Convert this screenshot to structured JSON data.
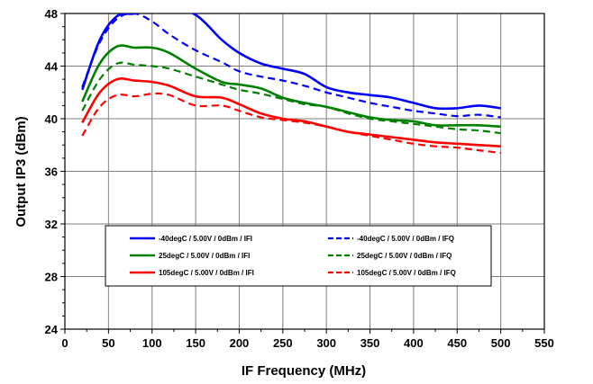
{
  "chart_data": {
    "type": "line",
    "xlabel": "IF Frequency (MHz)",
    "ylabel": "Output IP3 (dBm)",
    "xlim": [
      0,
      550
    ],
    "ylim": [
      24,
      48
    ],
    "xticks": [
      "0",
      "50",
      "100",
      "150",
      "200",
      "250",
      "300",
      "350",
      "400",
      "450",
      "500",
      "550"
    ],
    "yticks": [
      "24",
      "28",
      "32",
      "36",
      "40",
      "44",
      "48"
    ],
    "grid": true,
    "legend_placement": "inside-lower-center",
    "series": [
      {
        "name": "-40degC /  5.00V /  0dBm /  IFI",
        "color": "#0000ff",
        "style": "solid",
        "x": [
          20,
          40,
          60,
          80,
          100,
          120,
          150,
          180,
          200,
          225,
          250,
          275,
          300,
          325,
          350,
          375,
          400,
          425,
          450,
          475,
          500
        ],
        "y": [
          42.2,
          46.0,
          47.8,
          48.0,
          48.4,
          48.4,
          47.9,
          46.0,
          45.0,
          44.2,
          43.8,
          43.4,
          42.4,
          42.0,
          41.8,
          41.6,
          41.2,
          40.8,
          40.8,
          41.0,
          40.8
        ]
      },
      {
        "name": "-40degC /  5.00V /  0dBm /  IFQ",
        "color": "#0000ff",
        "style": "dashed",
        "x": [
          20,
          40,
          60,
          80,
          100,
          120,
          150,
          180,
          200,
          225,
          250,
          275,
          300,
          325,
          350,
          375,
          400,
          425,
          450,
          475,
          500
        ],
        "y": [
          42.4,
          45.8,
          47.6,
          48.0,
          47.4,
          46.4,
          45.2,
          44.3,
          43.6,
          43.2,
          42.9,
          42.5,
          42.0,
          41.6,
          41.2,
          40.9,
          40.6,
          40.4,
          40.2,
          40.3,
          40.1
        ]
      },
      {
        "name": "25degC /  5.00V /  0dBm /  IFI",
        "color": "#008000",
        "style": "solid",
        "x": [
          20,
          40,
          60,
          80,
          100,
          120,
          150,
          180,
          200,
          225,
          250,
          275,
          300,
          325,
          350,
          375,
          400,
          425,
          450,
          475,
          500
        ],
        "y": [
          41.3,
          44.2,
          45.5,
          45.4,
          45.4,
          45.0,
          43.8,
          42.8,
          42.6,
          42.3,
          41.6,
          41.2,
          40.9,
          40.5,
          40.1,
          39.9,
          39.8,
          39.5,
          39.5,
          39.5,
          39.4
        ]
      },
      {
        "name": "25degC /  5.00V /  0dBm /  IFQ",
        "color": "#008000",
        "style": "dashed",
        "x": [
          20,
          40,
          60,
          80,
          100,
          120,
          150,
          180,
          200,
          225,
          250,
          275,
          300,
          325,
          350,
          375,
          400,
          425,
          450,
          475,
          500
        ],
        "y": [
          40.6,
          43.0,
          44.2,
          44.1,
          44.0,
          43.8,
          43.2,
          42.6,
          42.2,
          41.9,
          41.5,
          41.1,
          40.9,
          40.4,
          40.0,
          39.8,
          39.6,
          39.4,
          39.2,
          39.1,
          38.9
        ]
      },
      {
        "name": "105degC /  5.00V /  0dBm /  IFI",
        "color": "#ff0000",
        "style": "solid",
        "x": [
          20,
          40,
          60,
          80,
          100,
          120,
          150,
          180,
          200,
          225,
          250,
          275,
          300,
          325,
          350,
          375,
          400,
          425,
          450,
          475,
          500
        ],
        "y": [
          39.7,
          42.0,
          43.0,
          42.9,
          42.8,
          42.5,
          41.7,
          41.6,
          41.1,
          40.4,
          40.0,
          39.8,
          39.4,
          39.0,
          38.8,
          38.6,
          38.4,
          38.2,
          38.1,
          38.0,
          37.9
        ]
      },
      {
        "name": "105degC /  5.00V /  0dBm /  IFQ",
        "color": "#ff0000",
        "style": "dashed",
        "x": [
          20,
          40,
          60,
          80,
          100,
          120,
          150,
          180,
          200,
          225,
          250,
          275,
          300,
          325,
          350,
          375,
          400,
          425,
          450,
          475,
          500
        ],
        "y": [
          38.7,
          40.9,
          41.8,
          41.7,
          41.9,
          41.8,
          41.0,
          41.0,
          40.6,
          40.1,
          39.9,
          39.7,
          39.4,
          39.0,
          38.7,
          38.4,
          38.1,
          37.9,
          37.8,
          37.6,
          37.4
        ]
      }
    ]
  }
}
